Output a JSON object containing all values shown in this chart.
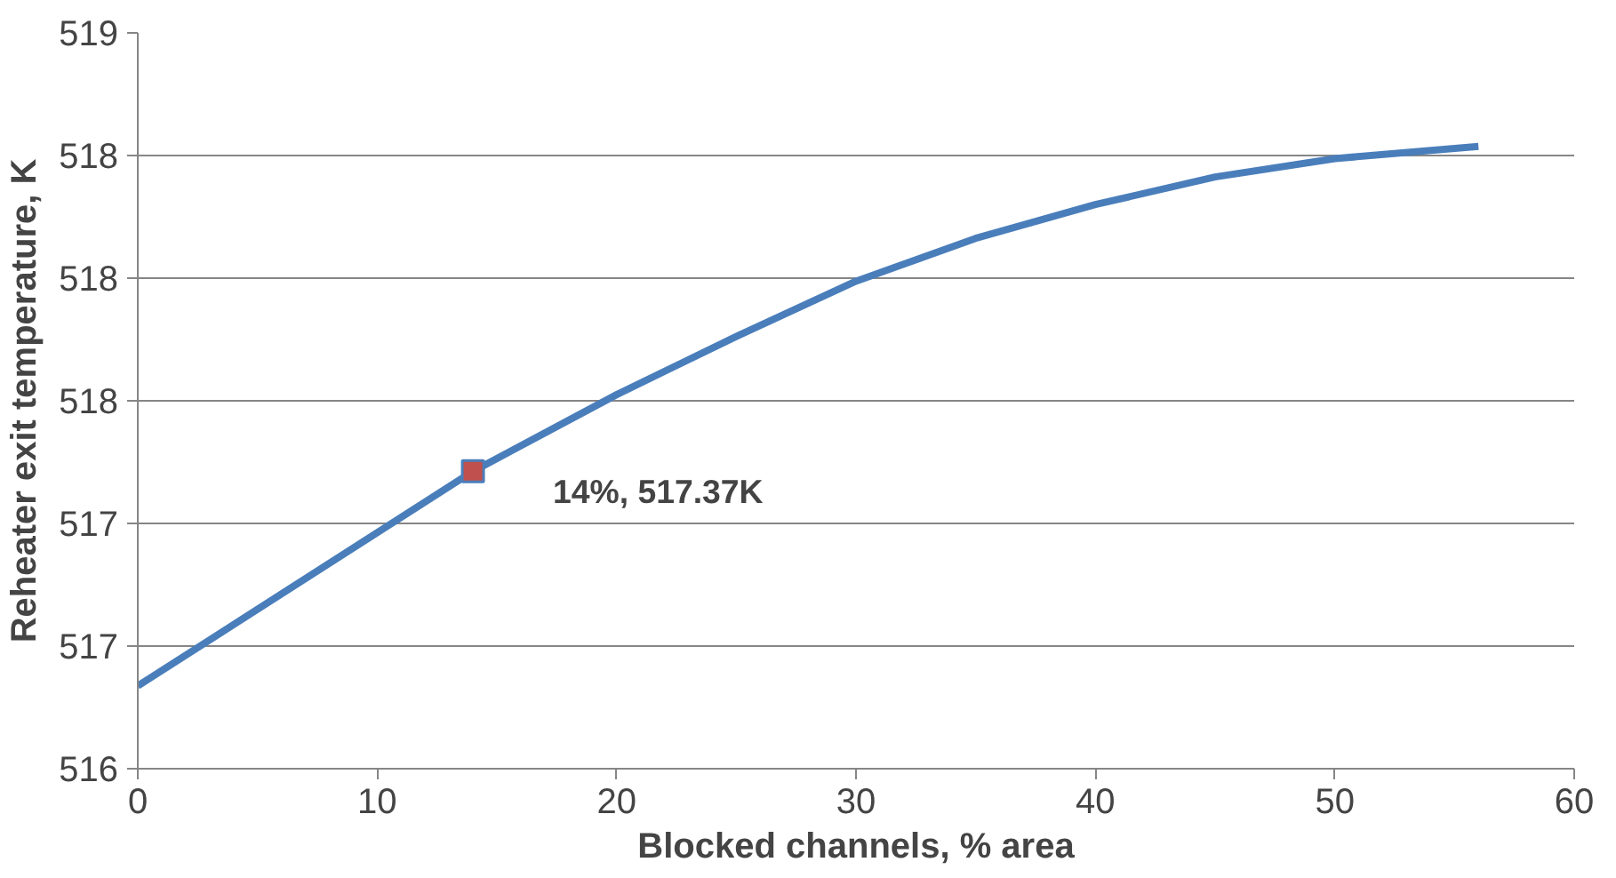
{
  "chart_data": {
    "type": "line",
    "xlabel": "Blocked channels, % area",
    "ylabel": "Reheater exit temperature, K",
    "xlim": [
      0,
      60
    ],
    "xticks": [
      0,
      10,
      20,
      30,
      40,
      50,
      60
    ],
    "ylim": [
      516.4,
      518.8
    ],
    "yticks": [
      {
        "value": 516.4,
        "label": "516"
      },
      {
        "value": 516.8,
        "label": "517"
      },
      {
        "value": 517.2,
        "label": "517"
      },
      {
        "value": 517.6,
        "label": "518"
      },
      {
        "value": 518.0,
        "label": "518"
      },
      {
        "value": 518.4,
        "label": "518"
      },
      {
        "value": 518.8,
        "label": "519"
      }
    ],
    "grid": "y",
    "line_style": "solid",
    "series": [
      {
        "color": "#4a7ebb",
        "x": [
          0,
          5,
          10,
          14,
          20,
          25,
          30,
          35,
          40,
          45,
          50,
          56
        ],
        "values": [
          516.67,
          516.92,
          517.17,
          517.37,
          517.62,
          517.81,
          517.99,
          518.13,
          518.24,
          518.33,
          518.39,
          518.43
        ]
      },
      {
        "type": "scatter",
        "marker": "square",
        "color": "#c0504d",
        "x": [
          14
        ],
        "values": [
          517.37
        ]
      }
    ],
    "annotations": [
      {
        "text": "14%, 517.37K",
        "x": 14,
        "y": 517.37
      }
    ]
  }
}
